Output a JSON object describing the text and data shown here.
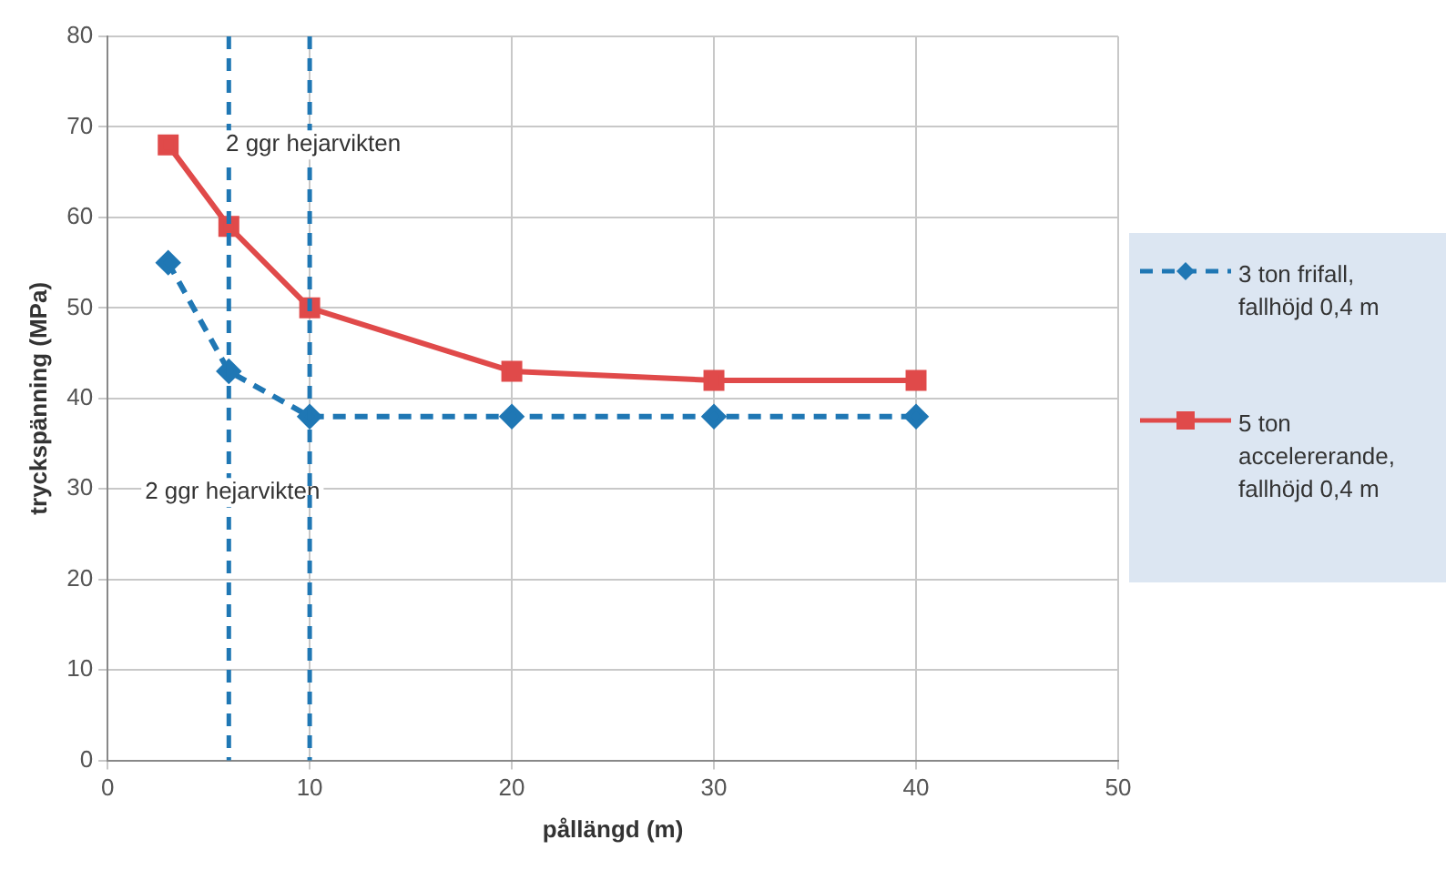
{
  "chart_data": {
    "type": "line",
    "xlabel": "pållängd (m)",
    "ylabel": "tryckspänning (MPa)",
    "x": [
      3,
      6,
      10,
      20,
      30,
      40
    ],
    "series": [
      {
        "name": "3 ton frifall, fallhöjd 0,4 m",
        "color": "#1f77b4",
        "values": [
          55,
          43,
          38,
          38,
          38,
          38
        ],
        "marker": "diamond",
        "line_style": "dashed"
      },
      {
        "name": "5 ton accelererande, fallhöjd 0,4 m",
        "color": "#e04a4a",
        "values": [
          68,
          59,
          50,
          43,
          42,
          42
        ],
        "marker": "square",
        "line_style": "solid"
      }
    ],
    "xlim": [
      0,
      50
    ],
    "xticks": [
      0,
      10,
      20,
      30,
      40,
      50
    ],
    "ylim": [
      0,
      80
    ],
    "yticks": [
      0,
      10,
      20,
      30,
      40,
      50,
      60,
      70,
      80
    ],
    "grid": true,
    "legend": "right",
    "ref_lines": [
      {
        "axis": "x",
        "value": 6,
        "label": "2 ggr hejarvikten",
        "color": "#1f77b4",
        "line_style": "dashed"
      },
      {
        "axis": "x",
        "value": 10,
        "label": "2 ggr hejarvikten",
        "color": "#1f77b4",
        "line_style": "dashed"
      }
    ]
  }
}
